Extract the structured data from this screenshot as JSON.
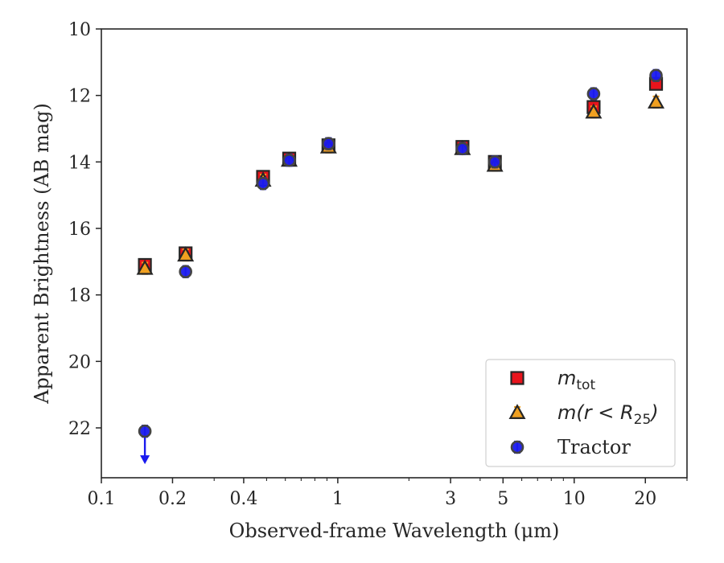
{
  "chart_data": {
    "type": "scatter",
    "xlabel": "Observed-frame Wavelength (μm)",
    "ylabel": "Apparent Brightness (AB mag)",
    "xscale": "log",
    "xlim": [
      0.1,
      30
    ],
    "ylim": [
      23.5,
      10
    ],
    "y_inverted": true,
    "x_ticks": [
      0.1,
      0.2,
      0.4,
      1,
      3,
      5,
      10,
      20
    ],
    "x_tick_labels": [
      "0.1",
      "0.2",
      "0.4",
      "1",
      "3",
      "5",
      "10",
      "20"
    ],
    "y_ticks": [
      10,
      12,
      14,
      16,
      18,
      20,
      22
    ],
    "y_tick_labels": [
      "10",
      "12",
      "14",
      "16",
      "18",
      "20",
      "22"
    ],
    "grid": false,
    "legend_position": "lower-right",
    "series": [
      {
        "name": "m_tot",
        "legend_main": "m",
        "legend_sub": "tot",
        "marker": "square",
        "color": "#e8141c",
        "errcolor": "#e8141c",
        "x": [
          0.1528,
          0.2271,
          0.4831,
          0.6231,
          0.9134,
          3.368,
          4.618,
          12.08,
          22.19
        ],
        "y": [
          17.1,
          16.75,
          14.45,
          13.9,
          13.5,
          13.55,
          14.0,
          12.35,
          11.65
        ]
      },
      {
        "name": "m(r < R25)",
        "legend_main": "m(r < R",
        "legend_sub": "25",
        "legend_tail": ")",
        "marker": "triangle",
        "color": "#f0a020",
        "errcolor": "#f0a020",
        "x": [
          0.1528,
          0.2271,
          0.4831,
          0.6231,
          0.9134,
          3.368,
          4.618,
          12.08,
          22.19
        ],
        "y": [
          17.2,
          16.8,
          14.55,
          13.95,
          13.55,
          13.6,
          14.1,
          12.5,
          12.2
        ]
      },
      {
        "name": "Tractor",
        "marker": "circle",
        "color": "#1a1aee",
        "errcolor": "#1a1aee",
        "x": [
          0.1528,
          0.2271,
          0.4831,
          0.6231,
          0.9134,
          3.368,
          4.618,
          12.08,
          22.19
        ],
        "y": [
          22.1,
          17.3,
          14.65,
          13.95,
          13.45,
          13.6,
          14.0,
          11.95,
          11.4
        ],
        "upper_limit_index": 0
      }
    ]
  }
}
